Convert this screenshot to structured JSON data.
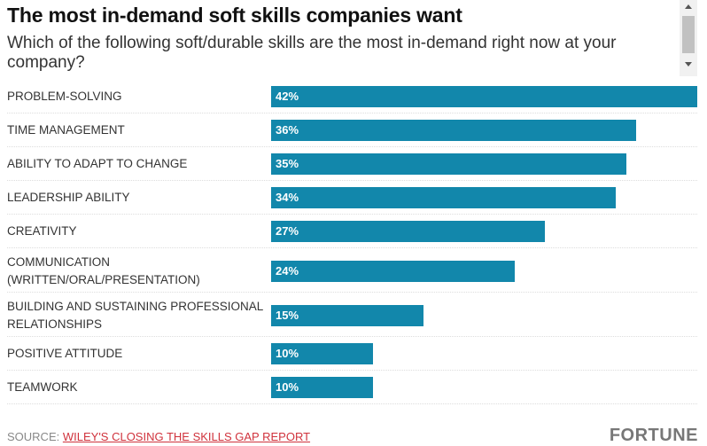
{
  "chart_data": {
    "type": "bar",
    "orientation": "horizontal",
    "title": "The most in-demand soft skills companies want",
    "subtitle": "Which of the following soft/durable skills are the most in-demand right now at your company?",
    "categories": [
      "PROBLEM-SOLVING",
      "TIME MANAGEMENT",
      "ABILITY TO ADAPT TO CHANGE",
      "LEADERSHIP ABILITY",
      "CREATIVITY",
      "COMMUNICATION (WRITTEN/ORAL/PRESENTATION)",
      "BUILDING AND SUSTAINING PROFESSIONAL RELATIONSHIPS",
      "POSITIVE ATTITUDE",
      "TEAMWORK"
    ],
    "values": [
      42,
      36,
      35,
      34,
      27,
      24,
      15,
      10,
      10
    ],
    "value_labels": [
      "42%",
      "36%",
      "35%",
      "34%",
      "27%",
      "24%",
      "15%",
      "10%",
      "10%"
    ],
    "color": "#1287ab",
    "source_label": "SOURCE:",
    "source_link": "WILEY'S CLOSING THE SKILLS GAP REPORT",
    "brand": "FORTUNE"
  }
}
